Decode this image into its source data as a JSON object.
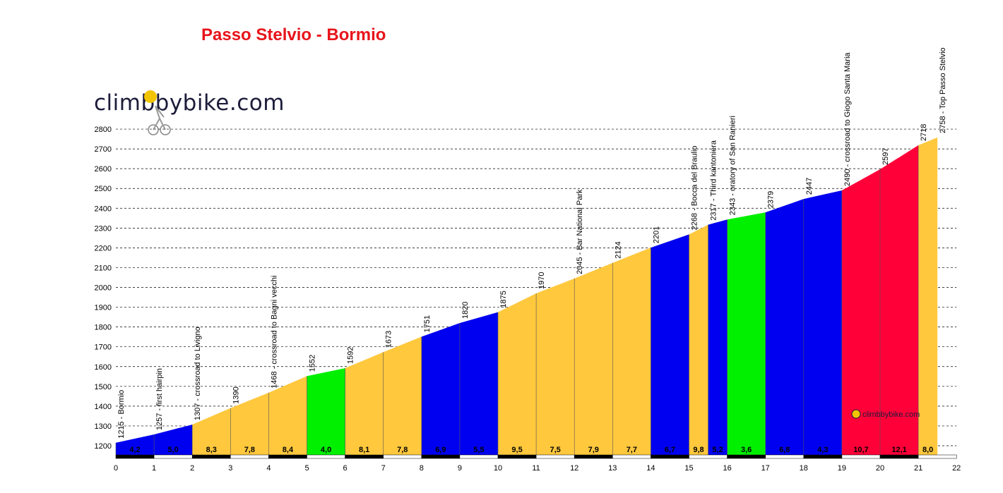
{
  "title": "Passo Stelvio - Bormio",
  "brand": "climbbybike.com",
  "watermark": "climbbybike.com",
  "colors": {
    "title": "#e8141b",
    "easy": "#ffc83d",
    "moderate": "#00f000",
    "hard": "#0000f0",
    "steep": "#ff0038",
    "bar": "#000000"
  },
  "chart_data": {
    "type": "area",
    "title": "Passo Stelvio - Bormio",
    "xlabel": "",
    "ylabel": "",
    "xlim": [
      0,
      22
    ],
    "ylim": [
      1150,
      2800
    ],
    "x_ticks": [
      0,
      1,
      2,
      3,
      4,
      5,
      6,
      7,
      8,
      9,
      10,
      11,
      12,
      13,
      14,
      15,
      16,
      17,
      18,
      19,
      20,
      21,
      22
    ],
    "y_ticks": [
      1200,
      1300,
      1400,
      1500,
      1600,
      1700,
      1800,
      1900,
      2000,
      2100,
      2200,
      2300,
      2400,
      2500,
      2600,
      2700,
      2800
    ],
    "grid": true,
    "points": [
      {
        "x": 0,
        "y": 1215,
        "label": "1215 - Bormio"
      },
      {
        "x": 1,
        "y": 1257,
        "label": "1257 - first hairpin"
      },
      {
        "x": 2,
        "y": 1307,
        "label": "1307 - crossroad to Livigno"
      },
      {
        "x": 3,
        "y": 1390,
        "label": "1390"
      },
      {
        "x": 4,
        "y": 1468,
        "label": "1468 - crossroad to Bagni vecchi"
      },
      {
        "x": 5,
        "y": 1552,
        "label": "1552"
      },
      {
        "x": 6,
        "y": 1592,
        "label": "1592"
      },
      {
        "x": 7,
        "y": 1673,
        "label": "1673"
      },
      {
        "x": 8,
        "y": 1751,
        "label": "1751"
      },
      {
        "x": 9,
        "y": 1820,
        "label": "1820"
      },
      {
        "x": 10,
        "y": 1875,
        "label": "1875"
      },
      {
        "x": 11,
        "y": 1970,
        "label": "1970"
      },
      {
        "x": 12,
        "y": 2045,
        "label": "2045 - Bar National Park"
      },
      {
        "x": 13,
        "y": 2124,
        "label": "2124"
      },
      {
        "x": 14,
        "y": 2201,
        "label": "2201"
      },
      {
        "x": 15,
        "y": 2268,
        "label": "2268 - Bocca del Braulio"
      },
      {
        "x": 15.5,
        "y": 2317,
        "label": "2317 - Third kantoniera"
      },
      {
        "x": 16,
        "y": 2343,
        "label": "2343 - oratory of San Ranieri"
      },
      {
        "x": 17,
        "y": 2379,
        "label": "2379"
      },
      {
        "x": 18,
        "y": 2447,
        "label": "2447"
      },
      {
        "x": 19,
        "y": 2490,
        "label": "2490 - crossroad to Giogo Santa Maria"
      },
      {
        "x": 20,
        "y": 2597,
        "label": "2597"
      },
      {
        "x": 21,
        "y": 2718,
        "label": "2718"
      },
      {
        "x": 21.5,
        "y": 2758,
        "label": "2758 - Top Passo Stelvio"
      }
    ],
    "segments": [
      {
        "grade": "4,2",
        "color": "#0000f0"
      },
      {
        "grade": "5,0",
        "color": "#0000f0"
      },
      {
        "grade": "8,3",
        "color": "#ffc83d"
      },
      {
        "grade": "7,8",
        "color": "#ffc83d"
      },
      {
        "grade": "8,4",
        "color": "#ffc83d"
      },
      {
        "grade": "4,0",
        "color": "#00f000"
      },
      {
        "grade": "8,1",
        "color": "#ffc83d"
      },
      {
        "grade": "7,8",
        "color": "#ffc83d"
      },
      {
        "grade": "6,9",
        "color": "#0000f0"
      },
      {
        "grade": "5,5",
        "color": "#0000f0"
      },
      {
        "grade": "9,5",
        "color": "#ffc83d"
      },
      {
        "grade": "7,5",
        "color": "#ffc83d"
      },
      {
        "grade": "7,9",
        "color": "#ffc83d"
      },
      {
        "grade": "7,7",
        "color": "#ffc83d"
      },
      {
        "grade": "6,7",
        "color": "#0000f0"
      },
      {
        "grade": "9,8",
        "color": "#ffc83d"
      },
      {
        "grade": "5,2",
        "color": "#0000f0"
      },
      {
        "grade": "3,6",
        "color": "#00f000"
      },
      {
        "grade": "6,8",
        "color": "#0000f0"
      },
      {
        "grade": "4,3",
        "color": "#0000f0"
      },
      {
        "grade": "10,7",
        "color": "#ff0038"
      },
      {
        "grade": "12,1",
        "color": "#ff0038"
      },
      {
        "grade": "8,0",
        "color": "#ffc83d"
      }
    ]
  }
}
